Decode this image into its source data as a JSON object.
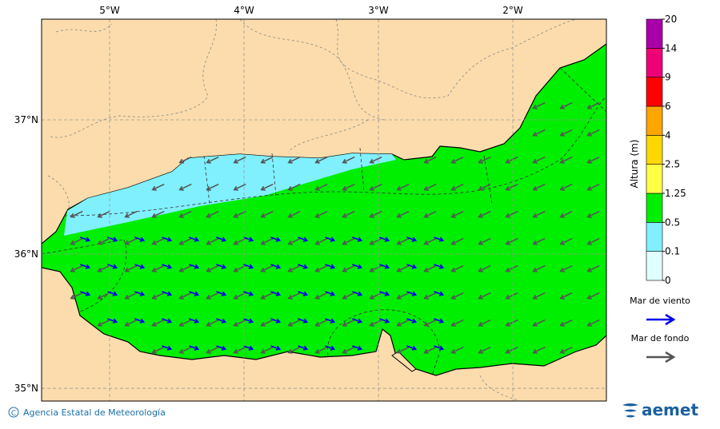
{
  "map": {
    "lon_ticks": [
      {
        "value": -5,
        "label": "5°W"
      },
      {
        "value": -4,
        "label": "4°W"
      },
      {
        "value": -3,
        "label": "3°W"
      },
      {
        "value": -2,
        "label": "2°W"
      }
    ],
    "lat_ticks": [
      {
        "value": 37,
        "label": "37°N"
      },
      {
        "value": 36,
        "label": "36°N"
      },
      {
        "value": 35,
        "label": "35°N"
      }
    ],
    "xlim": [
      -5.506,
      -1.304
    ],
    "ylim": [
      34.905,
      37.75
    ]
  },
  "colorbar": {
    "title": "Altura (m)",
    "levels": [
      0,
      0.1,
      0.5,
      1.25,
      2.5,
      4,
      6,
      9,
      14,
      20
    ],
    "colors": [
      "#e0ffff",
      "#80f0ff",
      "#00ee00",
      "#ffff44",
      "#ffd700",
      "#ffa500",
      "#ff0000",
      "#ee0077",
      "#aa00aa"
    ]
  },
  "legend": [
    {
      "label": "Mar de viento",
      "color": "#0000ee"
    },
    {
      "label": "Mar de fondo",
      "color": "#555555"
    }
  ],
  "footer": {
    "credit": "Agencia Estatal de Meteorología",
    "logo": "aemet"
  }
}
